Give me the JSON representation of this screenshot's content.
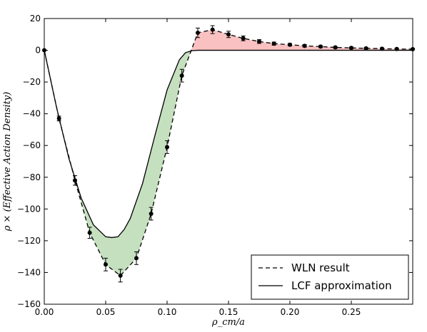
{
  "chart_data": {
    "type": "line",
    "title": "",
    "xlabel": "ρ_cm/a",
    "ylabel": "ρ × (Effective Action Density)",
    "xlim": [
      0.0,
      0.3
    ],
    "ylim": [
      -160,
      20
    ],
    "x_ticks": [
      "0.00",
      "0.05",
      "0.10",
      "0.15",
      "0.20",
      "0.25"
    ],
    "y_ticks": [
      "20",
      "0",
      "−20",
      "−40",
      "−60",
      "−80",
      "−100",
      "−120",
      "−140",
      "−160"
    ],
    "legend_position": "lower-right",
    "series": [
      {
        "name": "WLN result",
        "style": "dashed",
        "color": "#000000",
        "x": [
          0.0,
          0.012,
          0.025,
          0.037,
          0.05,
          0.062,
          0.075,
          0.087,
          0.1,
          0.112,
          0.125,
          0.137,
          0.15,
          0.162,
          0.175,
          0.187,
          0.2,
          0.212,
          0.225,
          0.237,
          0.25,
          0.262,
          0.275,
          0.287,
          0.3
        ],
        "y": [
          0,
          -43,
          -82,
          -115,
          -135,
          -142,
          -131,
          -103,
          -61,
          -16,
          11,
          13,
          10,
          7.5,
          5.5,
          4.2,
          3.5,
          2.8,
          2.3,
          1.8,
          1.5,
          1.2,
          1.0,
          0.8,
          0.7
        ],
        "errors": [
          0,
          1.5,
          3,
          3.5,
          4,
          4,
          4,
          4,
          4,
          4,
          3,
          2.5,
          2,
          1.5,
          1.2,
          1,
          0.8,
          0.8,
          0.6,
          0.6,
          0.5,
          0.5,
          0.5,
          0.4,
          0.4
        ]
      },
      {
        "name": "LCF approximation",
        "style": "solid",
        "color": "#000000",
        "x": [
          0.0,
          0.01,
          0.02,
          0.03,
          0.04,
          0.05,
          0.055,
          0.06,
          0.065,
          0.07,
          0.08,
          0.09,
          0.1,
          0.11,
          0.115,
          0.12,
          0.125,
          0.13,
          0.15,
          0.2,
          0.25,
          0.3
        ],
        "y": [
          0,
          -36,
          -68,
          -93,
          -110,
          -117.5,
          -118,
          -117.5,
          -113,
          -106,
          -84,
          -54,
          -25,
          -6,
          -1.5,
          -0.3,
          0,
          0,
          0,
          0,
          0,
          0
        ]
      }
    ],
    "fill_colors": {
      "below": "#c5e0bf",
      "above": "#f9c1c1"
    }
  },
  "legend": {
    "items": [
      "WLN result",
      "LCF approximation"
    ]
  }
}
